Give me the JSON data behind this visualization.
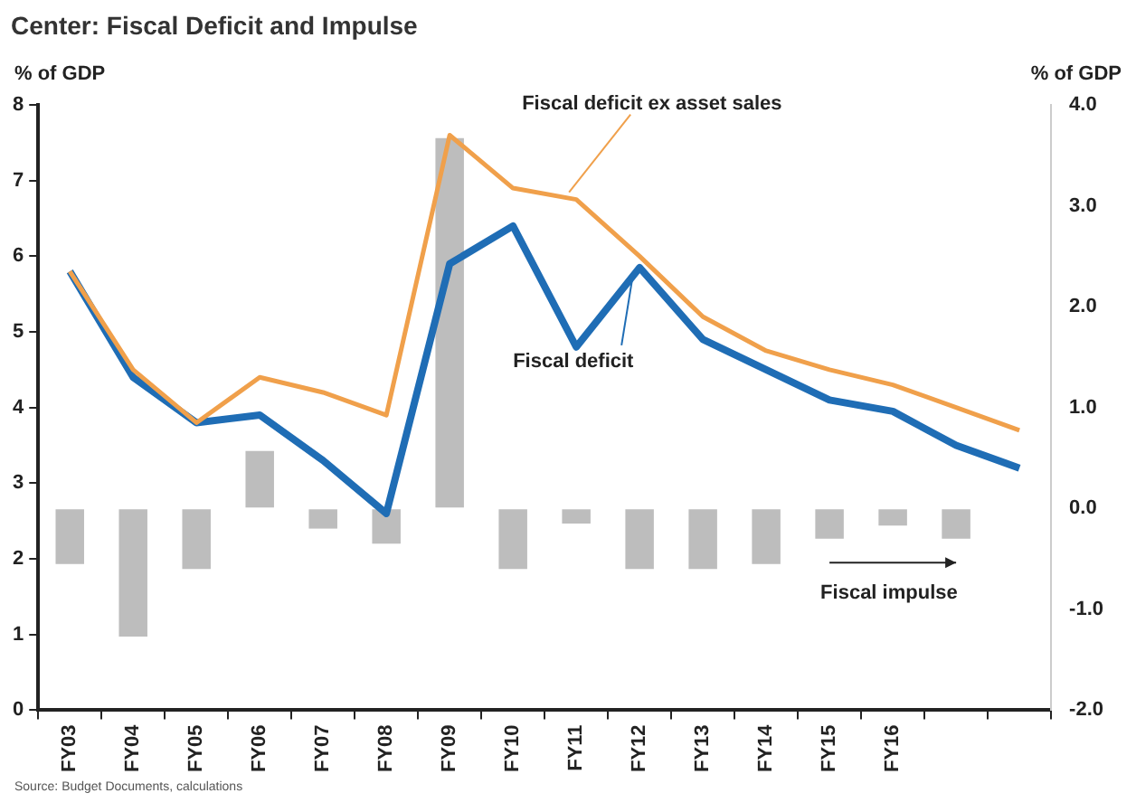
{
  "chart_data": {
    "type": "line",
    "title": "Center: Fiscal Deficit and Impulse",
    "categories": [
      "FY03",
      "FY04",
      "FY05",
      "FY06",
      "FY07",
      "FY08",
      "FY09",
      "FY10",
      "FY11",
      "FY12",
      "FY13",
      "FY14",
      "FY15",
      "FY16",
      null,
      null
    ],
    "ylabel": "% of GDP",
    "y2label": "% of GDP",
    "series": [
      {
        "name": "Fiscal impulse",
        "type": "bar",
        "axis": "y2",
        "color": "#bdbdbd",
        "values": [
          -0.55,
          -1.27,
          -0.6,
          0.57,
          -0.2,
          -0.35,
          3.67,
          -0.6,
          -0.15,
          -0.6,
          -0.6,
          -0.55,
          -0.3,
          -0.17,
          -0.3,
          null
        ]
      },
      {
        "name": "Fiscal deficit ex asset sales",
        "color": "#f0a04b",
        "values": [
          5.8,
          4.5,
          3.8,
          4.4,
          4.2,
          3.9,
          7.6,
          6.9,
          6.75,
          6.0,
          5.2,
          4.75,
          4.5,
          4.3,
          4.0,
          3.7
        ]
      },
      {
        "name": "Fiscal deficit",
        "color": "#1f6db5",
        "values": [
          5.8,
          4.4,
          3.8,
          3.9,
          3.3,
          2.6,
          5.9,
          6.4,
          4.8,
          5.85,
          4.9,
          4.5,
          4.1,
          3.95,
          3.5,
          3.2
        ]
      }
    ],
    "ylim": [
      0,
      8
    ],
    "yticks": [
      0,
      1,
      2,
      3,
      4,
      5,
      6,
      7,
      8
    ],
    "y2lim": [
      -2,
      4
    ],
    "y2ticks": [
      {
        "value": -2,
        "label": "-2.0"
      },
      {
        "value": -1,
        "label": "-1.0"
      },
      {
        "value": 0,
        "label": "0.0"
      },
      {
        "value": 1,
        "label": "1.0"
      },
      {
        "value": 2,
        "label": "2.0"
      },
      {
        "value": 3,
        "label": "3.0"
      },
      {
        "value": 4,
        "label": "4.0"
      }
    ],
    "grid": false,
    "legend": false,
    "marker": "none",
    "line_style": "solid",
    "annotations": [
      "Source: Budget Documents, calculations"
    ]
  }
}
